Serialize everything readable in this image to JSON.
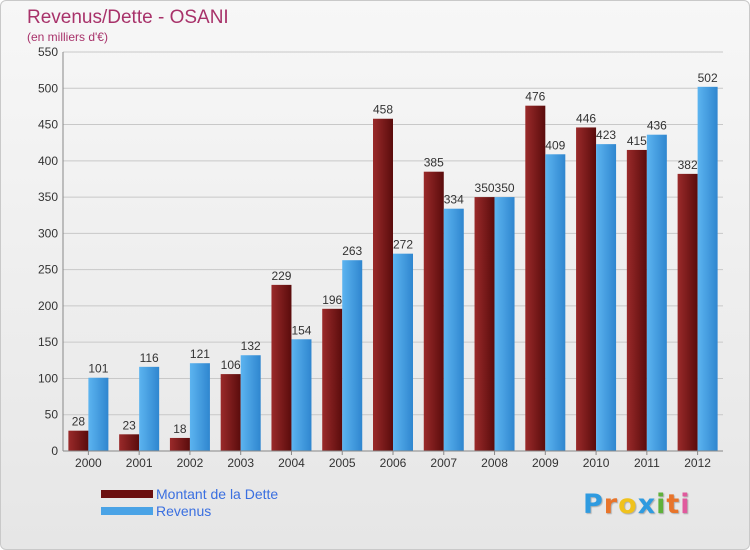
{
  "header": {
    "title": "Revenus/Dette - OSANI",
    "subtitle": "(en milliers d'€)"
  },
  "chart_data": {
    "type": "bar",
    "title": "Revenus/Dette - OSANI",
    "subtitle": "(en milliers d'€)",
    "categories": [
      "2000",
      "2001",
      "2002",
      "2003",
      "2004",
      "2005",
      "2006",
      "2007",
      "2008",
      "2009",
      "2010",
      "2011",
      "2012"
    ],
    "series": [
      {
        "name": "Montant de la Dette",
        "color": "#7a1a1a",
        "values": [
          28,
          23,
          18,
          106,
          229,
          196,
          458,
          385,
          350,
          476,
          446,
          415,
          382
        ]
      },
      {
        "name": "Revenus",
        "color": "#4aa3e6",
        "values": [
          101,
          116,
          121,
          132,
          154,
          263,
          272,
          334,
          350,
          409,
          423,
          436,
          502
        ]
      }
    ],
    "ylim": [
      0,
      550
    ],
    "yticks": [
      0,
      50,
      100,
      150,
      200,
      250,
      300,
      350,
      400,
      450,
      500,
      550
    ],
    "grid": true,
    "legend_position": "bottom-left"
  },
  "legend": {
    "items": [
      {
        "label": "Montant de la Dette",
        "color": "#6b0f0f"
      },
      {
        "label": "Revenus",
        "color": "#4aa3e6"
      }
    ]
  },
  "logo": {
    "letters": [
      "P",
      "r",
      "o",
      "x",
      "i",
      "t",
      "i"
    ],
    "colors": [
      "#2f9be0",
      "#e8742a",
      "#f0c21c",
      "#2f9be0",
      "#5fb13b",
      "#e8742a",
      "#e05a9d"
    ]
  }
}
